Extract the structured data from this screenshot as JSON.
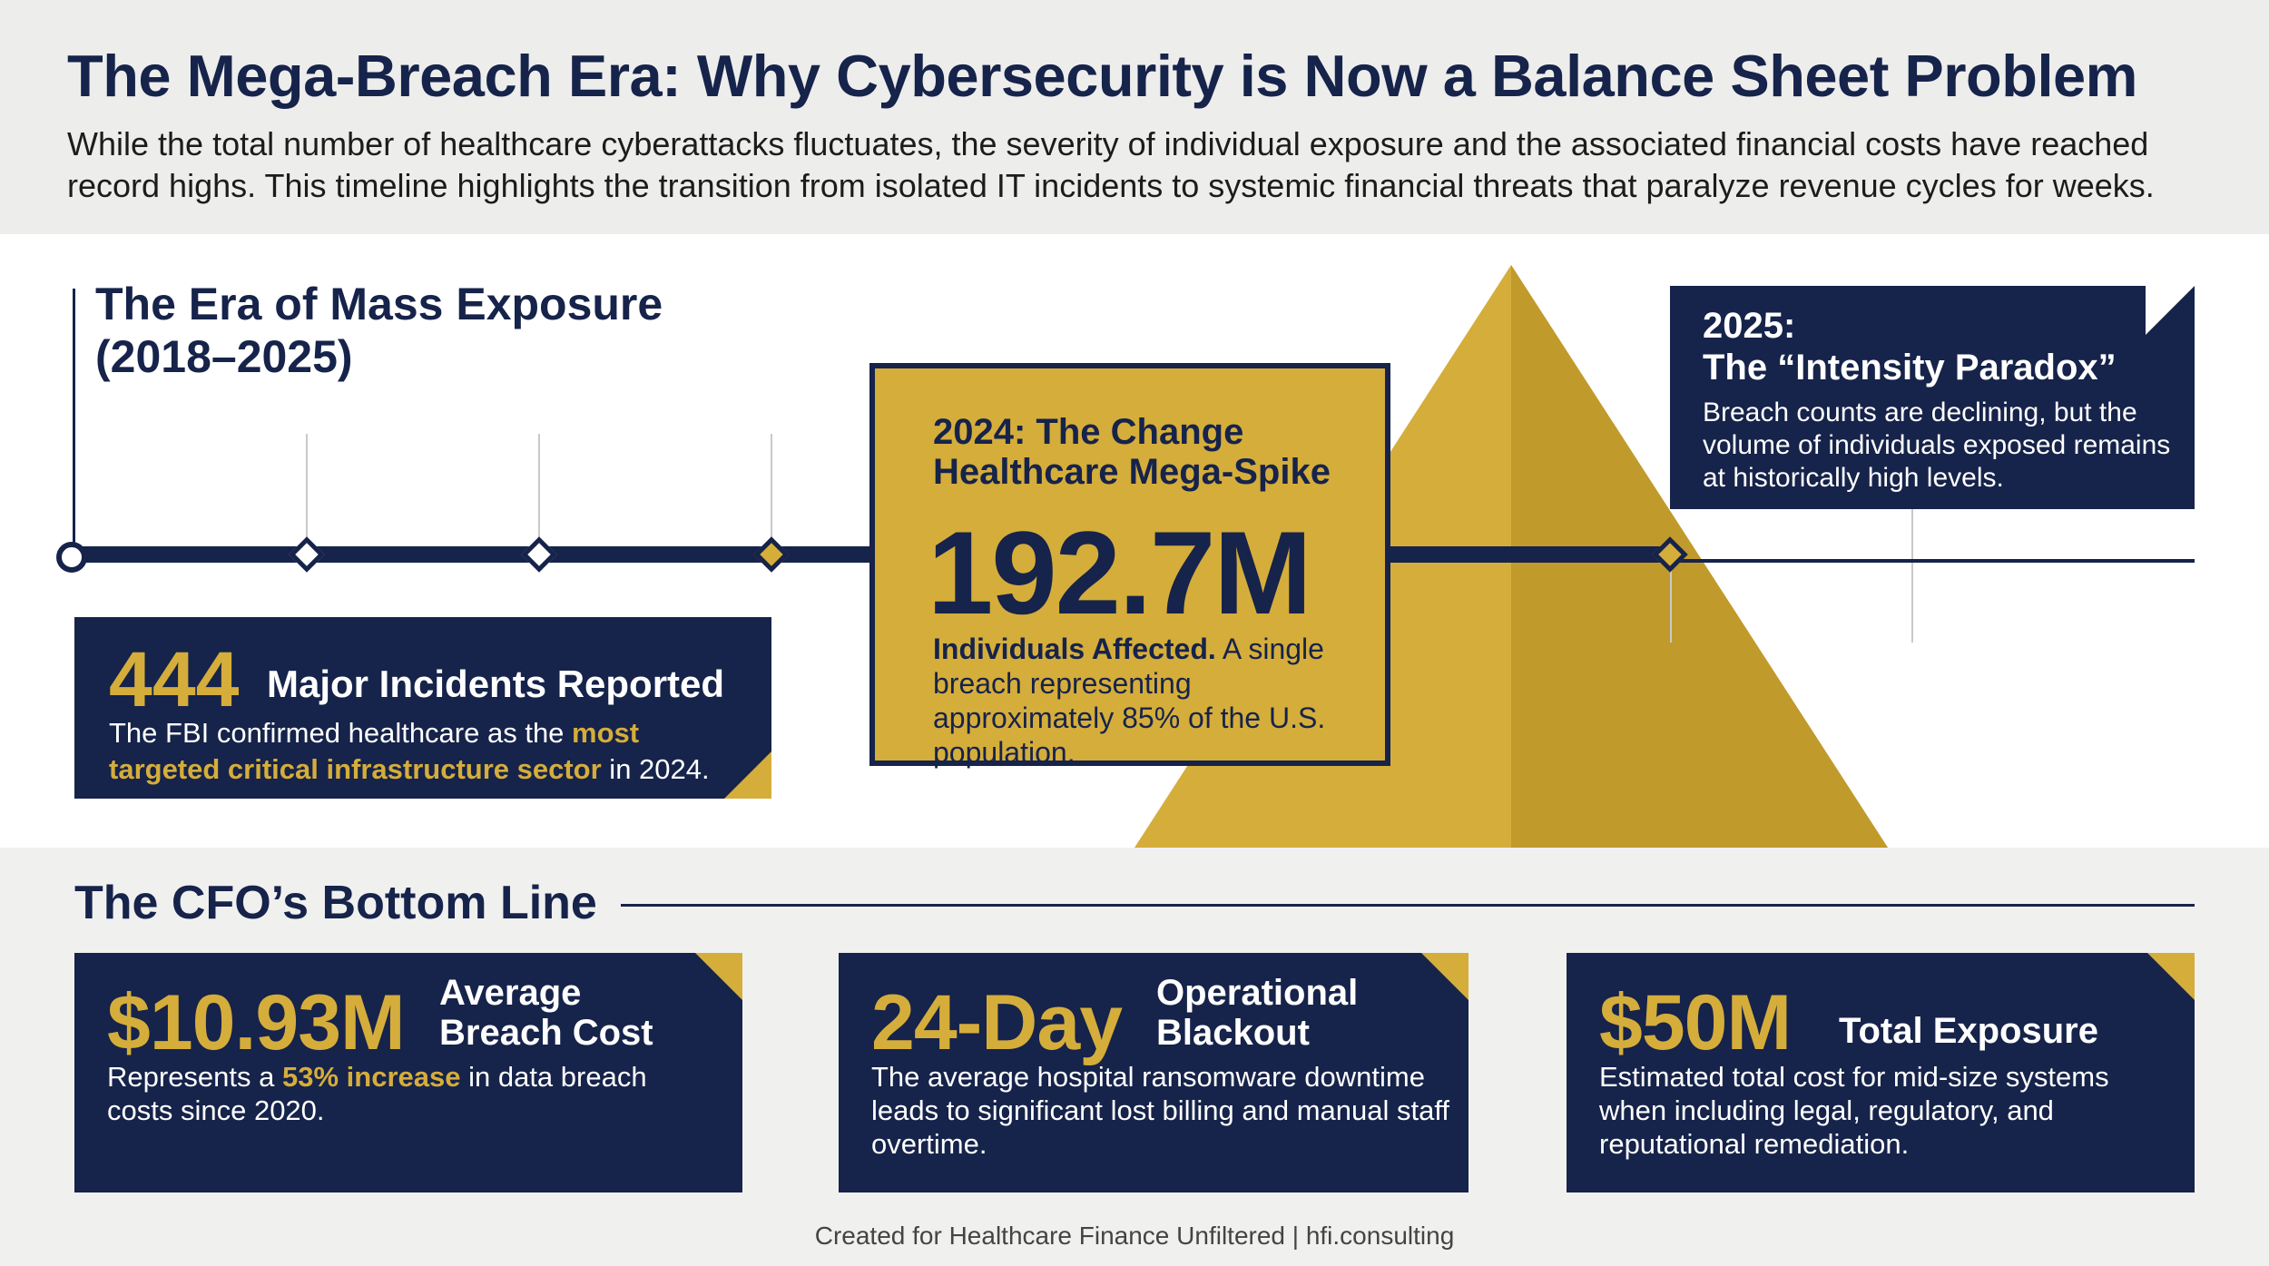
{
  "header": {
    "title": "The Mega-Breach Era: Why Cybersecurity is Now a Balance Sheet Problem",
    "subtitle": "While the total number of healthcare cyberattacks fluctuates, the severity of individual exposure and the associated financial costs have reached record highs. This timeline highlights the transition from isolated IT incidents to systemic financial threats that paralyze revenue cycles for weeks."
  },
  "timeline": {
    "section_title_line1": "The Era of Mass Exposure",
    "section_title_line2": "(2018–2025)"
  },
  "incidents_card": {
    "number": "444",
    "label": "Major Incidents Reported",
    "desc_pre": "The FBI confirmed healthcare as the ",
    "desc_highlight": "most targeted critical infrastructure sector",
    "desc_post": " in 2024."
  },
  "spike_card": {
    "title_line1": "2024: The Change",
    "title_line2": "Healthcare Mega-Spike",
    "number": "192.7M",
    "desc_bold": "Individuals Affected.",
    "desc_rest": " A single breach representing approximately 85% of the U.S. population."
  },
  "paradox_card": {
    "year": "2025:",
    "title": "The “Intensity Paradox”",
    "desc": "Breach counts are declining, but the volume of individuals exposed remains at historically high levels."
  },
  "bottom_line": {
    "title": "The CFO’s Bottom Line",
    "cards": [
      {
        "number": "$10.93M",
        "label_line1": "Average",
        "label_line2": "Breach Cost",
        "desc_pre": "Represents a ",
        "desc_highlight": "53% increase",
        "desc_post": " in data breach costs since 2020."
      },
      {
        "number": "24-Day",
        "label_line1": "Operational",
        "label_line2": "Blackout",
        "desc": "The average hospital ransomware downtime leads to significant lost billing and manual staff overtime."
      },
      {
        "number": "$50M",
        "label": "Total Exposure",
        "desc": "Estimated total cost for mid-size systems when including legal, regulatory, and reputational remediation."
      }
    ]
  },
  "footer": {
    "credit": "Created for Healthcare Finance Unfiltered | hfi.consulting"
  },
  "colors": {
    "navy": "#16234a",
    "gold": "#d5ad3b",
    "background": "#f0f0ef"
  }
}
